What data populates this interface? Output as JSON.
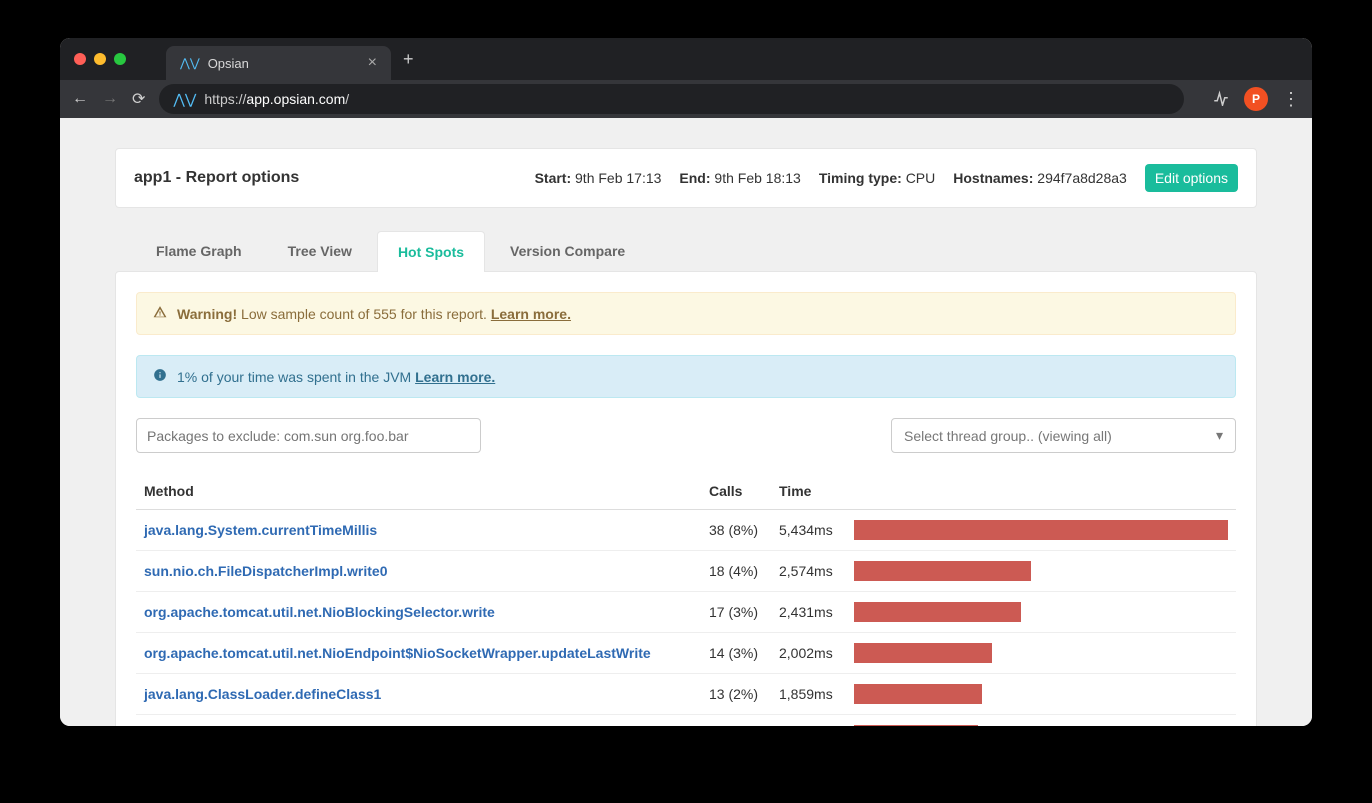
{
  "colors": {
    "traffic_red": "#ff5f57",
    "traffic_yellow": "#febc2e",
    "traffic_green": "#28c840",
    "accent_pulse": "#53bdf5",
    "avatar_bg": "#f25022",
    "edit_btn_bg": "#1abc9c",
    "tab_active_color": "#1abc9c",
    "method_link": "#2f6ab3",
    "bar_color": "#cc5a53",
    "warning_bg": "#fcf8e3",
    "warning_border": "#faebcc",
    "warning_text": "#8a6d3b",
    "info_bg": "#d9edf7",
    "info_border": "#bce8f1",
    "info_text": "#31708f"
  },
  "browser": {
    "tab_title": "Opsian",
    "url_display_prefix": "https://",
    "url_host": "app.opsian.com",
    "url_path": "/",
    "avatar_letter": "P"
  },
  "header": {
    "title": "app1 - Report options",
    "start_label": "Start:",
    "start_value": "9th Feb 17:13",
    "end_label": "End:",
    "end_value": "9th Feb 18:13",
    "timing_label": "Timing type:",
    "timing_value": "CPU",
    "hostnames_label": "Hostnames:",
    "hostnames_value": "294f7a8d28a3",
    "edit_button": "Edit options"
  },
  "tabs": {
    "items": [
      "Flame Graph",
      "Tree View",
      "Hot Spots",
      "Version Compare"
    ],
    "active_index": 2
  },
  "alerts": {
    "warning_strong": "Warning!",
    "warning_text": "Low sample count of 555 for this report.",
    "warning_link": "Learn more.",
    "info_text": "1% of your time was spent in the JVM",
    "info_link": "Learn more."
  },
  "controls": {
    "filter_placeholder": "Packages to exclude: com.sun org.foo.bar",
    "select_placeholder": "Select thread group.. (viewing all)"
  },
  "table": {
    "columns": [
      "Method",
      "Calls",
      "Time",
      ""
    ],
    "max_time_ms": 5434,
    "rows": [
      {
        "method": "java.lang.System.currentTimeMillis",
        "calls": "38 (8%)",
        "time": "5,434ms",
        "time_ms": 5434
      },
      {
        "method": "sun.nio.ch.FileDispatcherImpl.write0",
        "calls": "18 (4%)",
        "time": "2,574ms",
        "time_ms": 2574
      },
      {
        "method": "org.apache.tomcat.util.net.NioBlockingSelector.write",
        "calls": "17 (3%)",
        "time": "2,431ms",
        "time_ms": 2431
      },
      {
        "method": "org.apache.tomcat.util.net.NioEndpoint$NioSocketWrapper.updateLastWrite",
        "calls": "14 (3%)",
        "time": "2,002ms",
        "time_ms": 2002
      },
      {
        "method": "java.lang.ClassLoader.defineClass1",
        "calls": "13 (2%)",
        "time": "1,859ms",
        "time_ms": 1859
      },
      {
        "method": "",
        "calls": "",
        "time": "",
        "time_ms": 1800
      }
    ]
  }
}
